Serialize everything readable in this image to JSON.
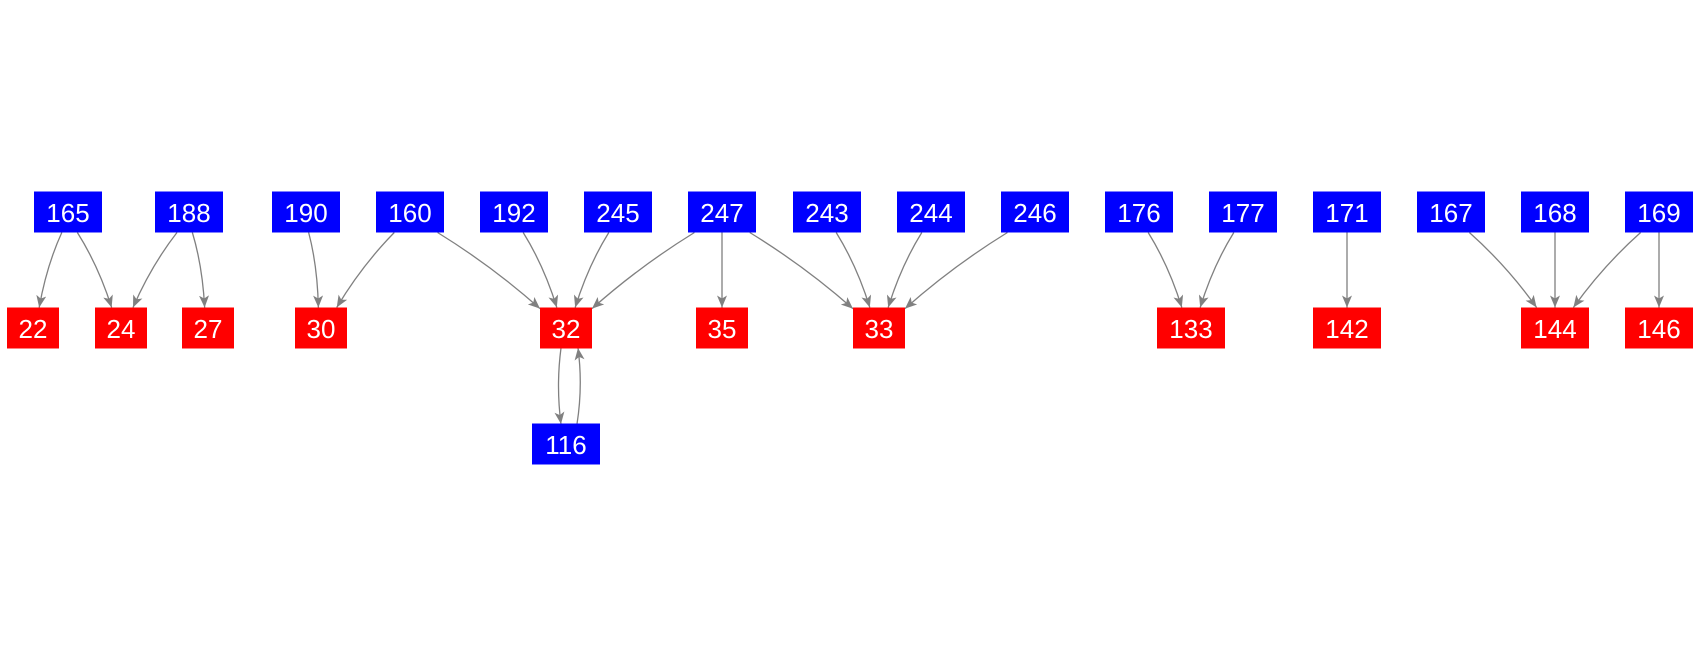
{
  "colors": {
    "source": "#0000ff",
    "target": "#ff0000",
    "edge": "#808080",
    "text": "#ffffff",
    "background": "#ffffff"
  },
  "nodes": [
    {
      "label": "165",
      "kind": "source"
    },
    {
      "label": "188",
      "kind": "source"
    },
    {
      "label": "190",
      "kind": "source"
    },
    {
      "label": "160",
      "kind": "source"
    },
    {
      "label": "192",
      "kind": "source"
    },
    {
      "label": "245",
      "kind": "source"
    },
    {
      "label": "247",
      "kind": "source"
    },
    {
      "label": "243",
      "kind": "source"
    },
    {
      "label": "244",
      "kind": "source"
    },
    {
      "label": "246",
      "kind": "source"
    },
    {
      "label": "176",
      "kind": "source"
    },
    {
      "label": "177",
      "kind": "source"
    },
    {
      "label": "171",
      "kind": "source"
    },
    {
      "label": "167",
      "kind": "source"
    },
    {
      "label": "168",
      "kind": "source"
    },
    {
      "label": "169",
      "kind": "source"
    },
    {
      "label": "22",
      "kind": "target"
    },
    {
      "label": "24",
      "kind": "target"
    },
    {
      "label": "27",
      "kind": "target"
    },
    {
      "label": "30",
      "kind": "target"
    },
    {
      "label": "32",
      "kind": "target"
    },
    {
      "label": "35",
      "kind": "target"
    },
    {
      "label": "33",
      "kind": "target"
    },
    {
      "label": "133",
      "kind": "target"
    },
    {
      "label": "142",
      "kind": "target"
    },
    {
      "label": "144",
      "kind": "target"
    },
    {
      "label": "146",
      "kind": "target"
    },
    {
      "label": "116",
      "kind": "source"
    }
  ],
  "edges": [
    [
      "165",
      "22"
    ],
    [
      "165",
      "24"
    ],
    [
      "188",
      "24"
    ],
    [
      "188",
      "27"
    ],
    [
      "190",
      "30"
    ],
    [
      "160",
      "30"
    ],
    [
      "160",
      "32"
    ],
    [
      "192",
      "32"
    ],
    [
      "245",
      "32"
    ],
    [
      "247",
      "32"
    ],
    [
      "247",
      "35"
    ],
    [
      "247",
      "33"
    ],
    [
      "243",
      "33"
    ],
    [
      "244",
      "33"
    ],
    [
      "246",
      "33"
    ],
    [
      "176",
      "133"
    ],
    [
      "177",
      "133"
    ],
    [
      "171",
      "142"
    ],
    [
      "167",
      "144"
    ],
    [
      "168",
      "144"
    ],
    [
      "169",
      "144"
    ],
    [
      "169",
      "146"
    ],
    [
      "32",
      "116"
    ],
    [
      "116",
      "32"
    ]
  ]
}
